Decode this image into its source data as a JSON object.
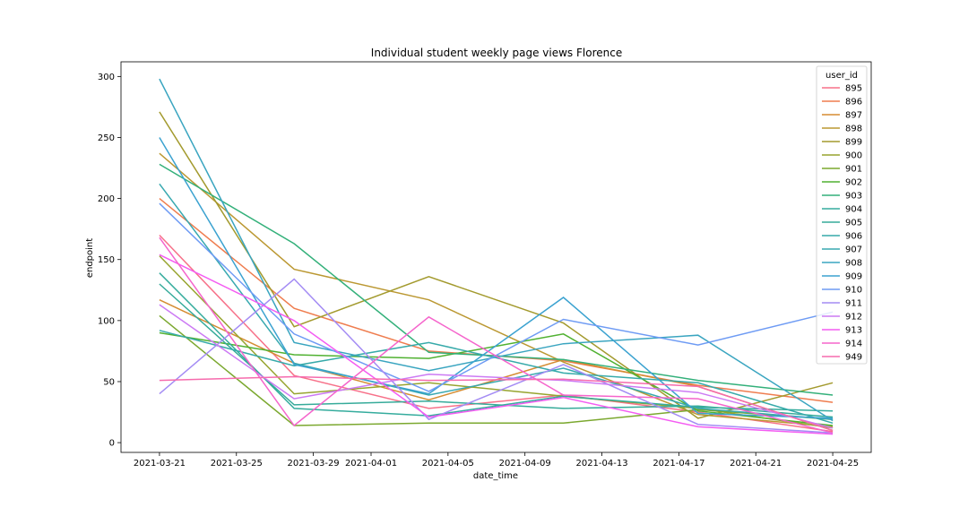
{
  "chart_data": {
    "type": "line",
    "title": "Individual student weekly page views Florence",
    "xlabel": "date_time",
    "ylabel": "endpoint",
    "x": [
      "2021-03-21",
      "2021-03-28",
      "2021-04-04",
      "2021-04-11",
      "2021-04-18",
      "2021-04-25"
    ],
    "x_ticks": [
      "2021-03-21",
      "2021-03-25",
      "2021-03-29",
      "2021-04-01",
      "2021-04-05",
      "2021-04-09",
      "2021-04-13",
      "2021-04-17",
      "2021-04-21",
      "2021-04-25"
    ],
    "xlim": [
      "2021-03-19",
      "2021-04-27"
    ],
    "ylim": [
      -8,
      312
    ],
    "y_ticks": [
      0,
      50,
      100,
      150,
      200,
      250,
      300
    ],
    "grid": false,
    "legend": {
      "title": "user_id",
      "placement": "top-right"
    },
    "series": [
      {
        "name": "895",
        "color": "#f77189",
        "values": [
          170,
          55,
          28,
          39,
          25,
          9
        ]
      },
      {
        "name": "896",
        "color": "#ef7d4f",
        "values": [
          200,
          110,
          75,
          67,
          47,
          33
        ]
      },
      {
        "name": "897",
        "color": "#d58c32",
        "values": [
          117,
          65,
          35,
          68,
          46,
          10
        ]
      },
      {
        "name": "898",
        "color": "#bb9832",
        "values": [
          237,
          142,
          117,
          66,
          23,
          13
        ]
      },
      {
        "name": "899",
        "color": "#a39a2e",
        "values": [
          271,
          95,
          136,
          98,
          20,
          49
        ]
      },
      {
        "name": "900",
        "color": "#97a42f",
        "values": [
          153,
          40,
          49,
          38,
          28,
          12
        ]
      },
      {
        "name": "901",
        "color": "#7ba82f",
        "values": [
          104,
          14,
          16,
          16,
          27,
          19
        ]
      },
      {
        "name": "902",
        "color": "#50b131",
        "values": [
          90,
          72,
          69,
          89,
          26,
          14
        ]
      },
      {
        "name": "903",
        "color": "#33b07a",
        "values": [
          228,
          163,
          74,
          68,
          51,
          39
        ]
      },
      {
        "name": "904",
        "color": "#35ac9d",
        "values": [
          139,
          28,
          22,
          38,
          29,
          26
        ]
      },
      {
        "name": "905",
        "color": "#36ab9a",
        "values": [
          130,
          31,
          34,
          28,
          30,
          21
        ]
      },
      {
        "name": "906",
        "color": "#37aaaa",
        "values": [
          92,
          63,
          82,
          57,
          49,
          16
        ]
      },
      {
        "name": "907",
        "color": "#38a9b0",
        "values": [
          212,
          65,
          39,
          61,
          28,
          19
        ]
      },
      {
        "name": "908",
        "color": "#3aa5c0",
        "values": [
          298,
          82,
          59,
          81,
          88,
          18
        ]
      },
      {
        "name": "909",
        "color": "#3ba2d0",
        "values": [
          250,
          64,
          40,
          119,
          24,
          20
        ]
      },
      {
        "name": "910",
        "color": "#6e9bf4",
        "values": [
          196,
          89,
          42,
          101,
          80,
          107
        ]
      },
      {
        "name": "911",
        "color": "#a48cf4",
        "values": [
          40,
          134,
          19,
          64,
          15,
          8
        ]
      },
      {
        "name": "912",
        "color": "#cc7af4",
        "values": [
          113,
          36,
          56,
          51,
          41,
          12
        ]
      },
      {
        "name": "913",
        "color": "#f45cf2",
        "values": [
          154,
          100,
          21,
          37,
          13,
          7
        ]
      },
      {
        "name": "914",
        "color": "#f565cc",
        "values": [
          168,
          14,
          103,
          39,
          36,
          8
        ]
      },
      {
        "name": "949",
        "color": "#f66bad",
        "values": [
          51,
          54,
          51,
          52,
          46,
          10
        ]
      }
    ]
  }
}
